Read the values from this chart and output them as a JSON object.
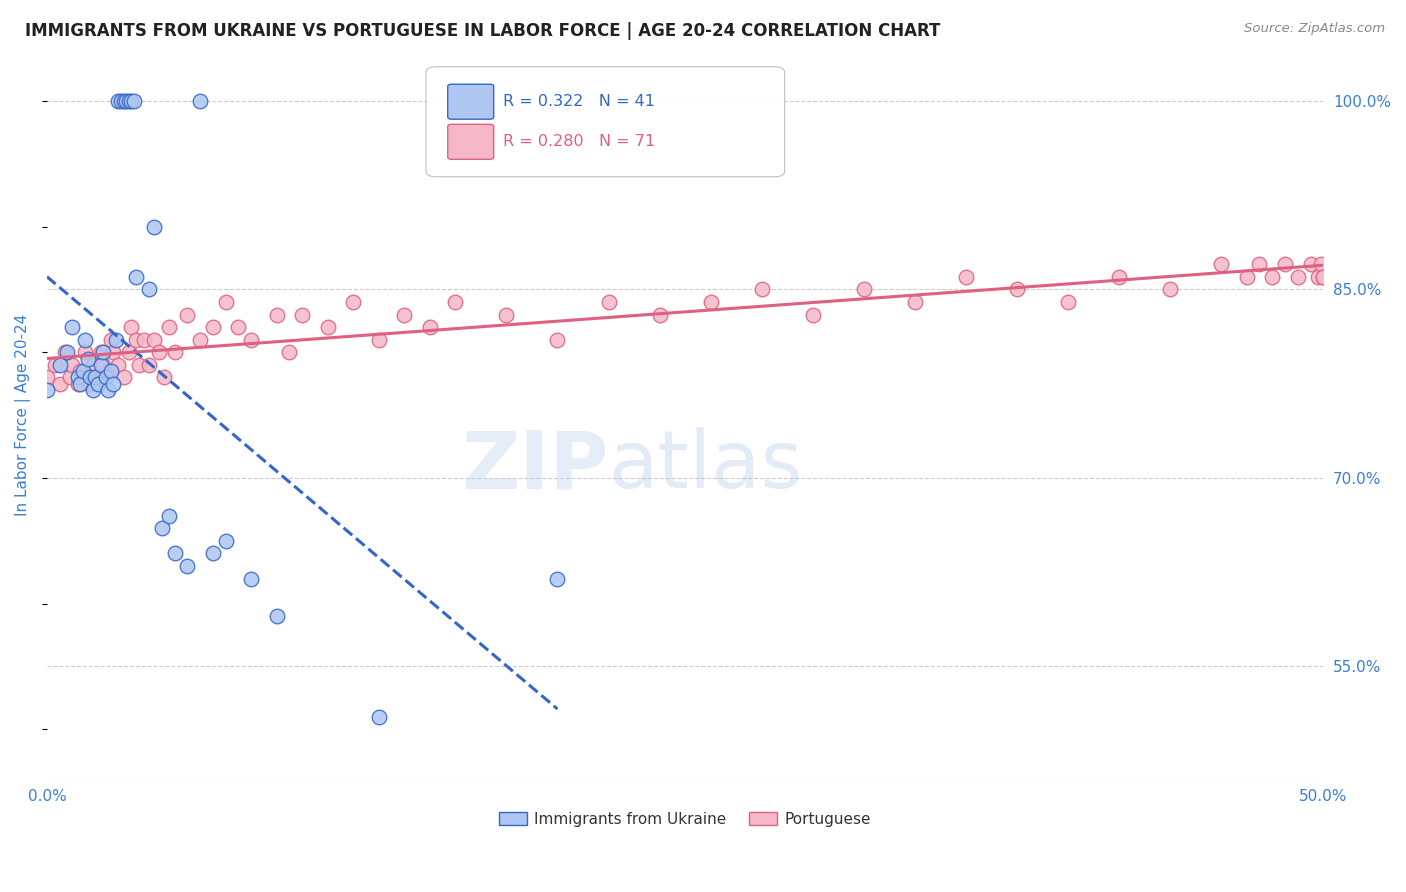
{
  "title": "IMMIGRANTS FROM UKRAINE VS PORTUGUESE IN LABOR FORCE | AGE 20-24 CORRELATION CHART",
  "source": "Source: ZipAtlas.com",
  "ylabel": "In Labor Force | Age 20-24",
  "xlim": [
    0.0,
    0.5
  ],
  "ylim": [
    0.46,
    1.04
  ],
  "ukraine_color": "#aec6f0",
  "portuguese_color": "#f4b8c8",
  "ukraine_line_color": "#3366cc",
  "portuguese_line_color": "#e06080",
  "watermark_zip": "ZIP",
  "watermark_atlas": "atlas",
  "ukraine_x": [
    0.0,
    0.005,
    0.008,
    0.01,
    0.012,
    0.013,
    0.014,
    0.015,
    0.016,
    0.017,
    0.018,
    0.019,
    0.02,
    0.021,
    0.022,
    0.023,
    0.024,
    0.025,
    0.026,
    0.027,
    0.028,
    0.029,
    0.03,
    0.031,
    0.032,
    0.033,
    0.034,
    0.035,
    0.04,
    0.042,
    0.045,
    0.048,
    0.05,
    0.055,
    0.06,
    0.065,
    0.07,
    0.08,
    0.09,
    0.13,
    0.2
  ],
  "ukraine_y": [
    0.77,
    0.79,
    0.8,
    0.82,
    0.78,
    0.775,
    0.785,
    0.81,
    0.795,
    0.78,
    0.77,
    0.78,
    0.775,
    0.79,
    0.8,
    0.78,
    0.77,
    0.785,
    0.775,
    0.81,
    1.0,
    1.0,
    1.0,
    1.0,
    1.0,
    1.0,
    1.0,
    0.86,
    0.85,
    0.9,
    0.66,
    0.67,
    0.64,
    0.63,
    1.0,
    0.64,
    0.65,
    0.62,
    0.59,
    0.51,
    0.62
  ],
  "portuguese_x": [
    0.0,
    0.003,
    0.005,
    0.007,
    0.009,
    0.01,
    0.012,
    0.013,
    0.015,
    0.016,
    0.017,
    0.018,
    0.02,
    0.021,
    0.022,
    0.024,
    0.025,
    0.026,
    0.028,
    0.03,
    0.032,
    0.033,
    0.035,
    0.036,
    0.038,
    0.04,
    0.042,
    0.044,
    0.046,
    0.048,
    0.05,
    0.055,
    0.06,
    0.065,
    0.07,
    0.075,
    0.08,
    0.09,
    0.095,
    0.1,
    0.11,
    0.12,
    0.13,
    0.14,
    0.15,
    0.16,
    0.18,
    0.2,
    0.22,
    0.24,
    0.26,
    0.28,
    0.3,
    0.32,
    0.34,
    0.36,
    0.38,
    0.4,
    0.42,
    0.44,
    0.46,
    0.47,
    0.475,
    0.48,
    0.485,
    0.49,
    0.495,
    0.498,
    0.499,
    0.5,
    0.5
  ],
  "portuguese_y": [
    0.78,
    0.79,
    0.775,
    0.8,
    0.78,
    0.79,
    0.775,
    0.785,
    0.8,
    0.78,
    0.775,
    0.79,
    0.78,
    0.8,
    0.79,
    0.785,
    0.81,
    0.8,
    0.79,
    0.78,
    0.8,
    0.82,
    0.81,
    0.79,
    0.81,
    0.79,
    0.81,
    0.8,
    0.78,
    0.82,
    0.8,
    0.83,
    0.81,
    0.82,
    0.84,
    0.82,
    0.81,
    0.83,
    0.8,
    0.83,
    0.82,
    0.84,
    0.81,
    0.83,
    0.82,
    0.84,
    0.83,
    0.81,
    0.84,
    0.83,
    0.84,
    0.85,
    0.83,
    0.85,
    0.84,
    0.86,
    0.85,
    0.84,
    0.86,
    0.85,
    0.87,
    0.86,
    0.87,
    0.86,
    0.87,
    0.86,
    0.87,
    0.86,
    0.87,
    0.86,
    0.86
  ],
  "background_color": "#ffffff",
  "grid_color": "#cccccc",
  "title_color": "#222222",
  "label_color": "#3a7fd5",
  "tick_color": "#3a7fd5"
}
